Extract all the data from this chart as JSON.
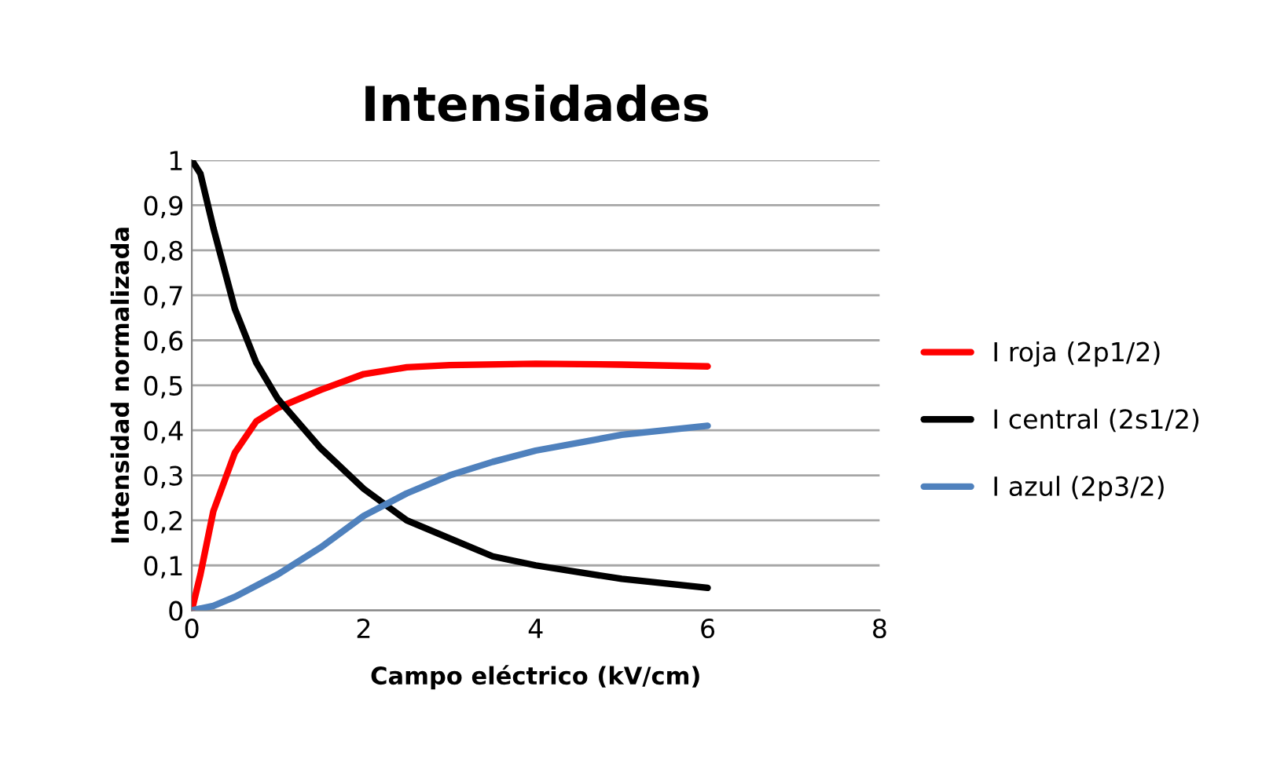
{
  "chart_data": {
    "type": "line",
    "title": "Intensidades",
    "xlabel": "Campo eléctrico (kV/cm)",
    "ylabel": "Intensidad normalizada",
    "xlim": [
      0,
      8
    ],
    "xticks": [
      0,
      2,
      4,
      6,
      8
    ],
    "ylim": [
      0,
      1
    ],
    "yticks": [
      0,
      {
        "value": 0.1,
        "label": "0,1"
      },
      {
        "value": 0.2,
        "label": "0,2"
      },
      {
        "value": 0.3,
        "label": "0,3"
      },
      {
        "value": 0.4,
        "label": "0,4"
      },
      {
        "value": 0.5,
        "label": "0,5"
      },
      {
        "value": 0.6,
        "label": "0,6"
      },
      {
        "value": 0.7,
        "label": "0,7"
      },
      {
        "value": 0.8,
        "label": "0,8"
      },
      {
        "value": 0.9,
        "label": "0,9"
      },
      1
    ],
    "grid": "y",
    "legend": "right",
    "marker": "none",
    "line_style": "solid",
    "series": [
      {
        "name": "I roja (2p1/2)",
        "color": "#ff0000",
        "x": [
          0,
          0.1,
          0.25,
          0.5,
          0.75,
          1,
          1.5,
          2,
          2.5,
          3,
          4,
          5,
          6
        ],
        "values": [
          0,
          0.08,
          0.22,
          0.35,
          0.42,
          0.45,
          0.49,
          0.525,
          0.54,
          0.545,
          0.548,
          0.546,
          0.542
        ]
      },
      {
        "name": "I central (2s1/2)",
        "color": "#000000",
        "x": [
          0,
          0.1,
          0.25,
          0.5,
          0.75,
          1,
          1.5,
          2,
          2.5,
          3,
          3.5,
          4,
          5,
          6
        ],
        "values": [
          1,
          0.97,
          0.85,
          0.67,
          0.55,
          0.47,
          0.36,
          0.27,
          0.2,
          0.16,
          0.12,
          0.1,
          0.07,
          0.05
        ]
      },
      {
        "name": "I azul (2p3/2)",
        "color": "#4f81bd",
        "x": [
          0,
          0.25,
          0.5,
          1,
          1.5,
          2,
          2.5,
          3,
          3.5,
          4,
          5,
          6
        ],
        "values": [
          0,
          0.01,
          0.03,
          0.08,
          0.14,
          0.21,
          0.26,
          0.3,
          0.33,
          0.355,
          0.39,
          0.41
        ]
      }
    ]
  }
}
